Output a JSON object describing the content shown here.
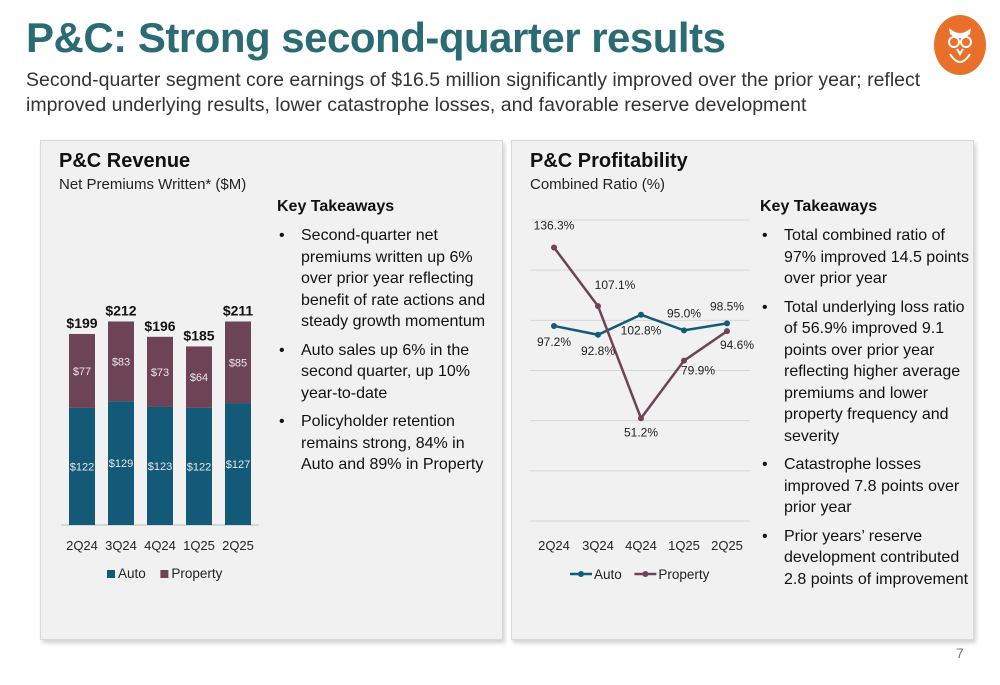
{
  "header": {
    "title": "P&C: Strong second-quarter results",
    "subtitle": "Second-quarter segment core earnings of $16.5 million significantly improved over the prior year; reflect improved underlying results, lower catastrophe losses, and favorable reserve development"
  },
  "logo": {
    "icon": "owl-logo-icon",
    "color": "#e8702a"
  },
  "left_panel": {
    "title": "P&C Revenue",
    "subtitle": "Net Premiums Written* ($M)",
    "takeaways_title": "Key Takeaways",
    "takeaways": [
      "Second-quarter net premiums written up 6% over prior year reflecting benefit of rate actions and steady growth momentum",
      "Auto sales up 6% in the second quarter, up 10% year-to-date",
      "Policyholder retention remains strong, 84% in Auto and 89% in Property"
    ]
  },
  "right_panel": {
    "title": "P&C Profitability",
    "subtitle": "Combined Ratio (%)",
    "takeaways_title": "Key Takeaways",
    "takeaways": [
      "Total combined ratio of 97% improved 14.5 points over prior year",
      "Total underlying loss ratio of 56.9% improved 9.1 points over prior year reflecting higher average premiums and lower property frequency and severity",
      "Catastrophe losses improved 7.8 points over prior year",
      "Prior years’ reserve development contributed 2.8 points of improvement"
    ]
  },
  "page_number": "7",
  "chart_data": [
    {
      "type": "bar",
      "stacked": true,
      "categories": [
        "2Q24",
        "3Q24",
        "4Q24",
        "1Q25",
        "2Q25"
      ],
      "series": [
        {
          "name": "Auto",
          "values": [
            122,
            129,
            123,
            122,
            127
          ],
          "labels": [
            "$122",
            "$129",
            "$123",
            "$122",
            "$127"
          ],
          "color": "#135a78"
        },
        {
          "name": "Property",
          "values": [
            77,
            83,
            73,
            64,
            85
          ],
          "labels": [
            "$77",
            "$83",
            "$73",
            "$64",
            "$85"
          ],
          "color": "#6d4356"
        }
      ],
      "totals": [
        199,
        212,
        196,
        185,
        211
      ],
      "total_labels": [
        "$199",
        "$212",
        "$196",
        "$185",
        "$211"
      ],
      "ylim": [
        0,
        250
      ],
      "legend": "bottom",
      "grid": false
    },
    {
      "type": "line",
      "categories": [
        "2Q24",
        "3Q24",
        "4Q24",
        "1Q25",
        "2Q25"
      ],
      "series": [
        {
          "name": "Auto",
          "values": [
            97.2,
            92.8,
            102.8,
            95.0,
            98.5
          ],
          "labels": [
            "97.2%",
            "92.8%",
            "102.8%",
            "95.0%",
            "98.5%"
          ],
          "color": "#135a78"
        },
        {
          "name": "Property",
          "values": [
            136.3,
            107.1,
            51.2,
            79.9,
            94.6
          ],
          "labels": [
            "136.3%",
            "107.1%",
            "51.2%",
            "79.9%",
            "94.6%"
          ],
          "color": "#6d4356"
        }
      ],
      "ylim": [
        0,
        150
      ],
      "legend": "bottom",
      "grid": true
    }
  ]
}
